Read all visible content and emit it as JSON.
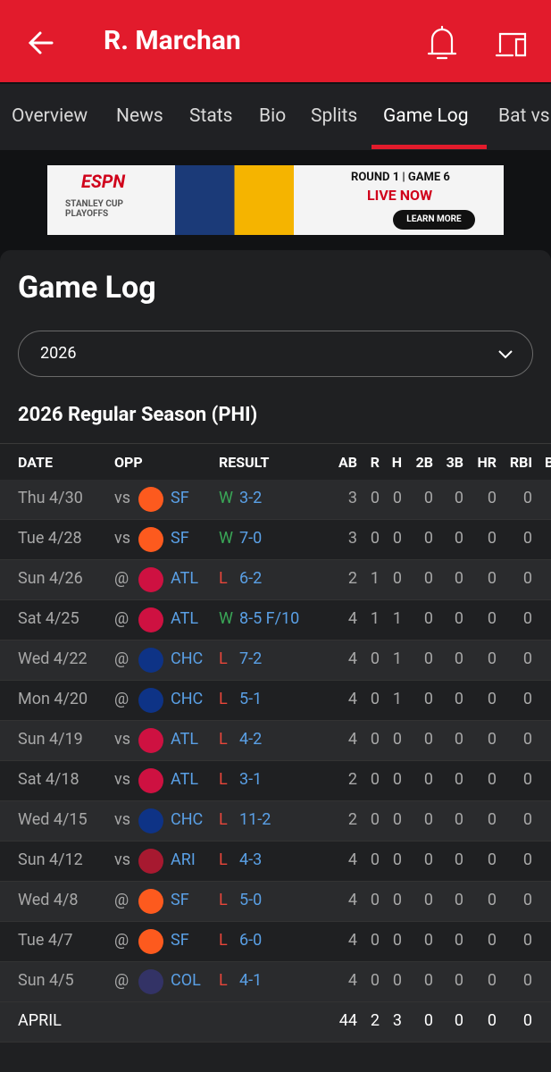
{
  "header": {
    "title": "R. Marchan"
  },
  "tabs": [
    "Overview",
    "News",
    "Stats",
    "Bio",
    "Splits",
    "Game Log",
    "Bat vs"
  ],
  "ad": {
    "brand": "ESPN",
    "event": "STANLEY CUP PLAYOFFS",
    "round": "ROUND 1 | GAME 6",
    "live": "LIVE NOW",
    "cta": "LEARN MORE"
  },
  "page": {
    "title": "Game Log",
    "season_select": "2026",
    "section": "2026 Regular Season (PHI)"
  },
  "table": {
    "columns": [
      "DATE",
      "OPP",
      "RESULT",
      "AB",
      "R",
      "H",
      "2B",
      "3B",
      "HR",
      "RBI",
      "B"
    ],
    "rows": [
      [
        "Thu 4/30",
        "vs",
        "SF",
        "W",
        "3-2",
        3,
        0,
        0,
        0,
        0,
        0,
        0
      ],
      [
        "Tue 4/28",
        "vs",
        "SF",
        "W",
        "7-0",
        3,
        0,
        0,
        0,
        0,
        0,
        0
      ],
      [
        "Sun 4/26",
        "@",
        "ATL",
        "L",
        "6-2",
        2,
        1,
        0,
        0,
        0,
        0,
        0
      ],
      [
        "Sat 4/25",
        "@",
        "ATL",
        "W",
        "8-5 F/10",
        4,
        1,
        1,
        0,
        0,
        0,
        0
      ],
      [
        "Wed 4/22",
        "@",
        "CHC",
        "L",
        "7-2",
        4,
        0,
        1,
        0,
        0,
        0,
        0
      ],
      [
        "Mon 4/20",
        "@",
        "CHC",
        "L",
        "5-1",
        4,
        0,
        1,
        0,
        0,
        0,
        0
      ],
      [
        "Sun 4/19",
        "vs",
        "ATL",
        "L",
        "4-2",
        4,
        0,
        0,
        0,
        0,
        0,
        0
      ],
      [
        "Sat 4/18",
        "vs",
        "ATL",
        "L",
        "3-1",
        2,
        0,
        0,
        0,
        0,
        0,
        0
      ],
      [
        "Wed 4/15",
        "vs",
        "CHC",
        "L",
        "11-2",
        2,
        0,
        0,
        0,
        0,
        0,
        0
      ],
      [
        "Sun 4/12",
        "vs",
        "ARI",
        "L",
        "4-3",
        4,
        0,
        0,
        0,
        0,
        0,
        0
      ],
      [
        "Wed 4/8",
        "@",
        "SF",
        "L",
        "5-0",
        4,
        0,
        0,
        0,
        0,
        0,
        0
      ],
      [
        "Tue 4/7",
        "@",
        "SF",
        "L",
        "6-0",
        4,
        0,
        0,
        0,
        0,
        0,
        0
      ],
      [
        "Sun 4/5",
        "@",
        "COL",
        "L",
        "4-1",
        4,
        0,
        0,
        0,
        0,
        0,
        0
      ]
    ],
    "total": [
      "APRIL",
      44,
      2,
      3,
      0,
      0,
      0,
      0
    ]
  }
}
